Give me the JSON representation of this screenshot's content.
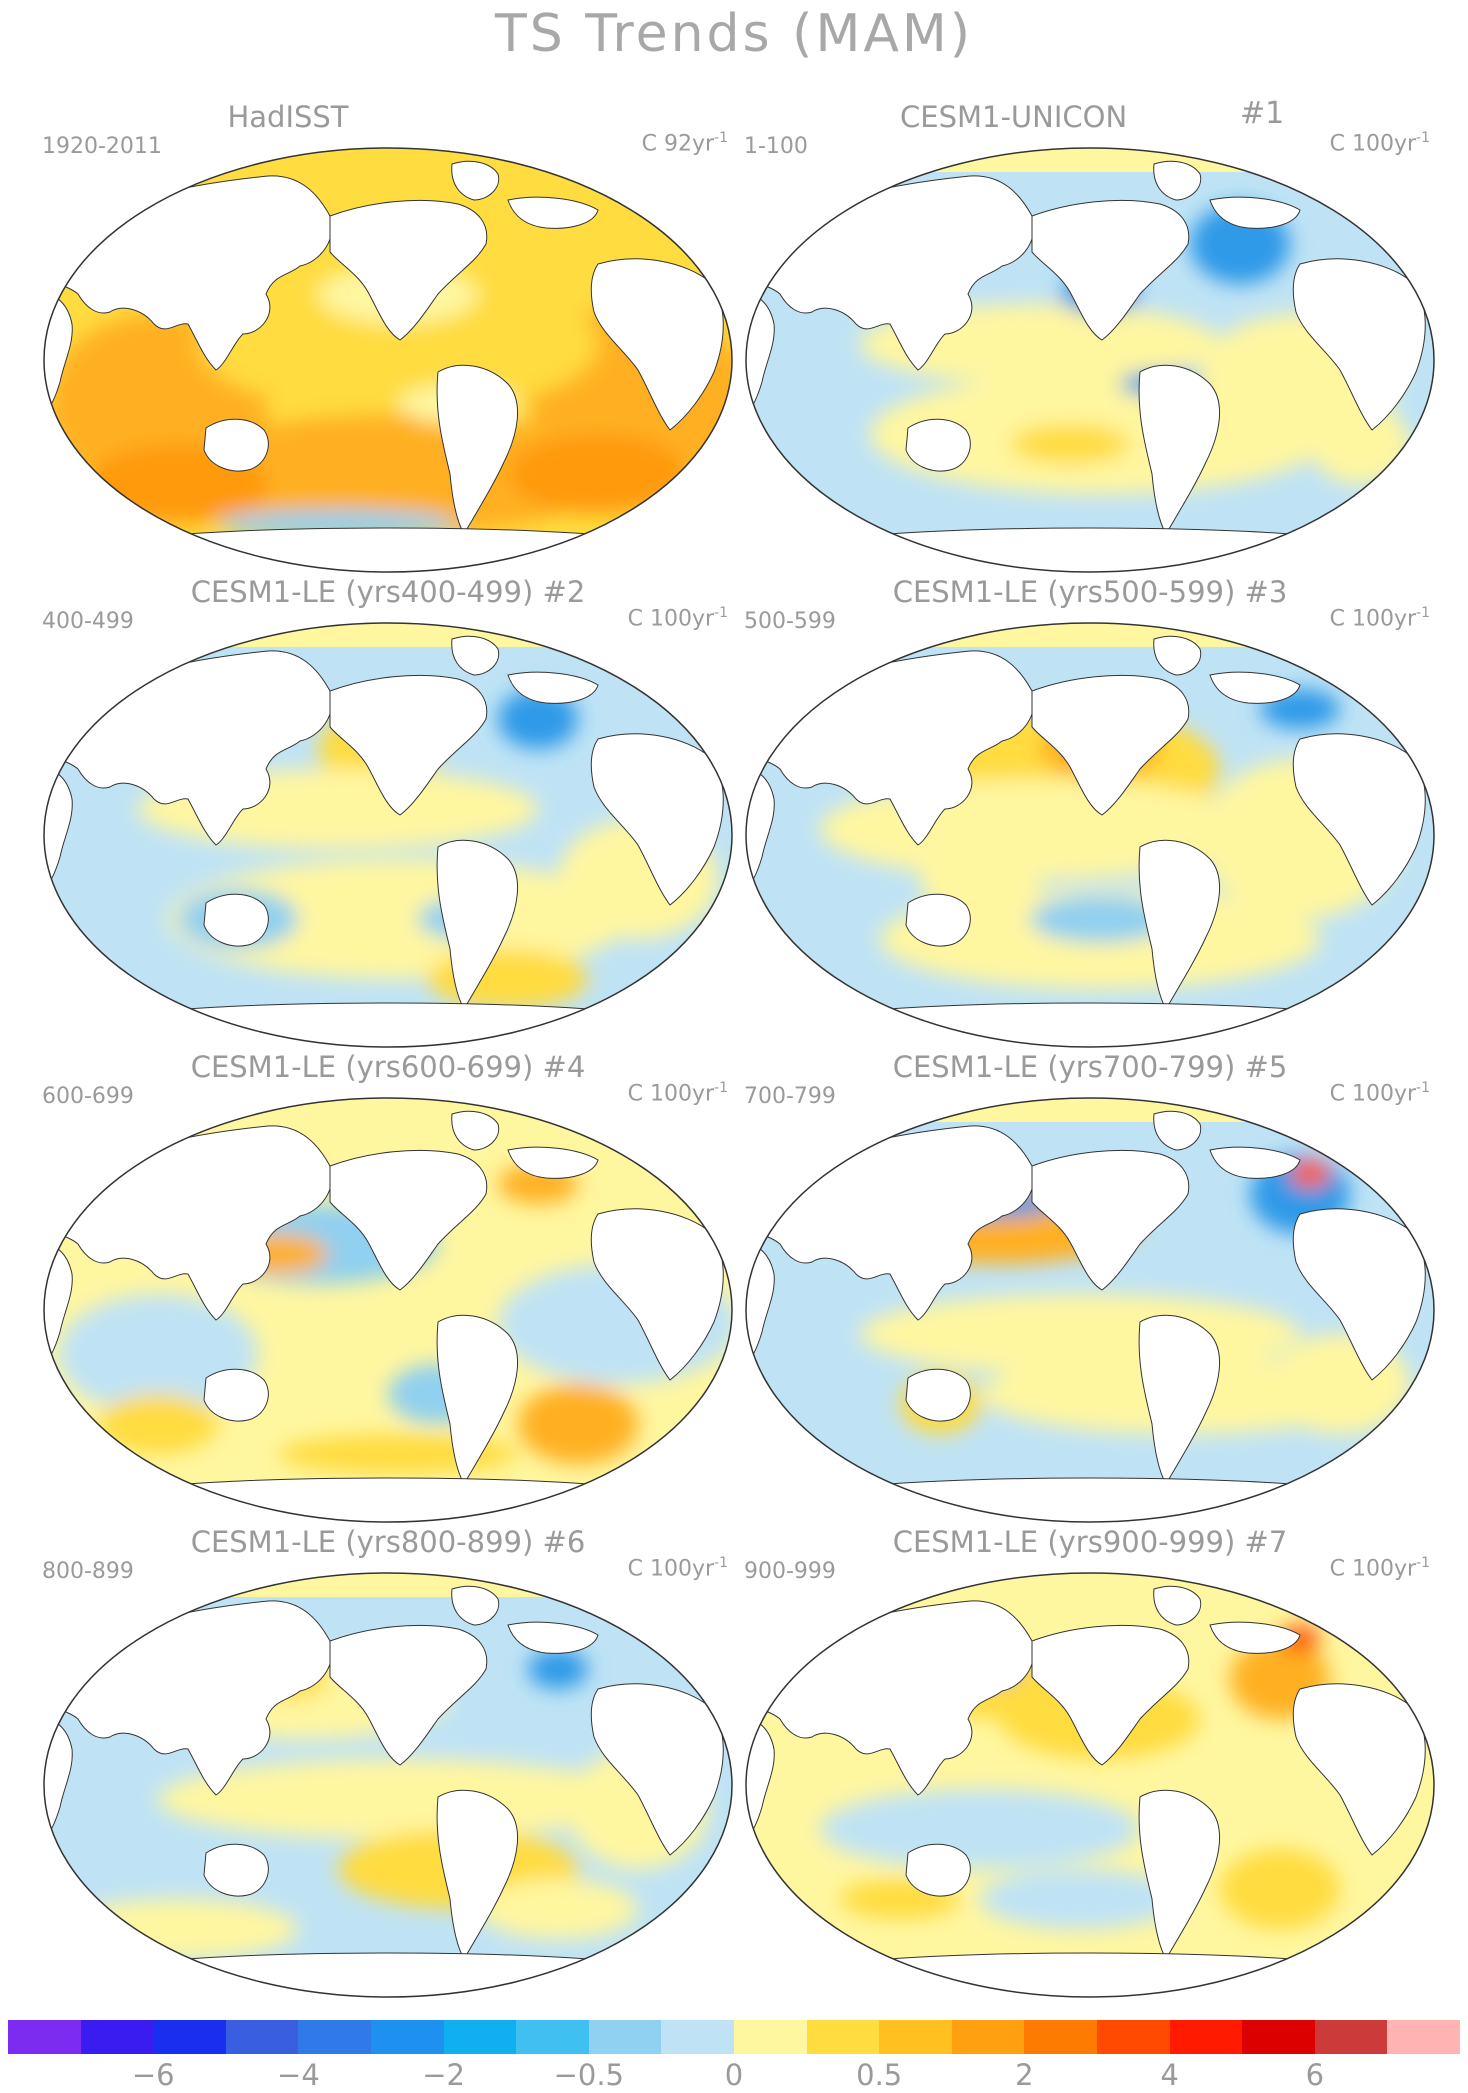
{
  "figure_title": "TS Trends (MAM)",
  "panels": [
    {
      "title": "HadISST",
      "period": "1920-2011",
      "units": "C 92yr",
      "units_exp": "-1",
      "hash": "",
      "scheme": "warm"
    },
    {
      "title": "CESM1-UNICON",
      "period": "1-100",
      "units": "C 100yr",
      "units_exp": "-1",
      "hash": "#1",
      "scheme": "u1"
    },
    {
      "title": "CESM1-LE (yrs400-499) #2",
      "period": "400-499",
      "units": "C 100yr",
      "units_exp": "-1",
      "hash": "",
      "scheme": "m2"
    },
    {
      "title": "CESM1-LE (yrs500-599) #3",
      "period": "500-599",
      "units": "C 100yr",
      "units_exp": "-1",
      "hash": "",
      "scheme": "m3"
    },
    {
      "title": "CESM1-LE (yrs600-699) #4",
      "period": "600-699",
      "units": "C 100yr",
      "units_exp": "-1",
      "hash": "",
      "scheme": "m4"
    },
    {
      "title": "CESM1-LE (yrs700-799) #5",
      "period": "700-799",
      "units": "C 100yr",
      "units_exp": "-1",
      "hash": "",
      "scheme": "m5"
    },
    {
      "title": "CESM1-LE (yrs800-899) #6",
      "period": "800-899",
      "units": "C 100yr",
      "units_exp": "-1",
      "hash": "",
      "scheme": "m6"
    },
    {
      "title": "CESM1-LE (yrs900-999) #7",
      "period": "900-999",
      "units": "C 100yr",
      "units_exp": "-1",
      "hash": "",
      "scheme": "m7"
    }
  ],
  "colorbar": {
    "colors": [
      "#7b2cf0",
      "#3a1cf0",
      "#1a2ef0",
      "#3a5ee0",
      "#2f7ae8",
      "#1e90f0",
      "#10b0f0",
      "#40c0f0",
      "#90d0f0",
      "#bfe3f5",
      "#fff6a0",
      "#ffdc40",
      "#ffc020",
      "#ffa010",
      "#ff7a00",
      "#ff4a00",
      "#ff1a00",
      "#dd0000",
      "#cc3a3a",
      "#ffb3b3"
    ],
    "tick_labels": [
      "-6",
      "-4",
      "-2",
      "-0.5",
      "0",
      "0.5",
      "2",
      "4",
      "6"
    ]
  },
  "palette": {
    "land": "#ffffff",
    "outline": "#333333",
    "neutral_warm": "#fff6a0",
    "neutral_cool": "#bfe3f5",
    "warm_mid": "#ffdc40",
    "warm_strong": "#ffb020",
    "warm_orange": "#ff9a10",
    "cool_mid": "#90d0f0",
    "cool_strong": "#2f9ae8",
    "red": "#ff5a10"
  }
}
